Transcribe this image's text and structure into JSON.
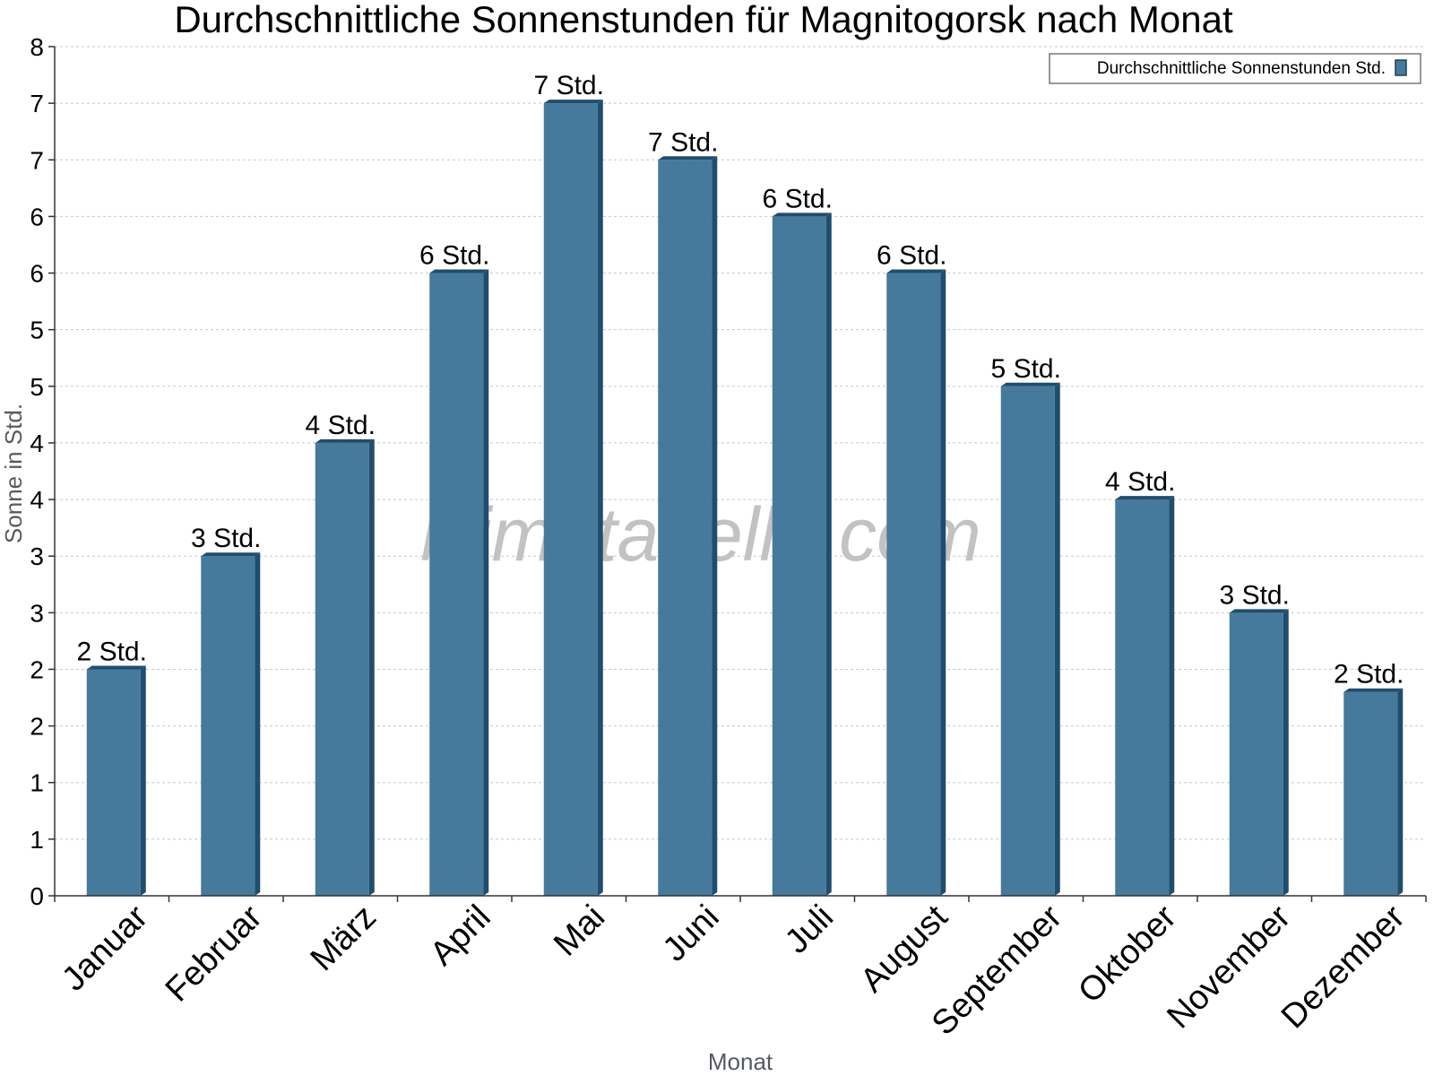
{
  "chart_data": {
    "type": "bar",
    "title": "Durchschnittliche Sonnenstunden für Magnitogorsk nach Monat",
    "xlabel": "Monat",
    "ylabel": "Sonne in Std.",
    "ylim": [
      0,
      7.5
    ],
    "y_ticks": [
      {
        "value": 0,
        "label": "0"
      },
      {
        "value": 0.5,
        "label": "1"
      },
      {
        "value": 1,
        "label": "1"
      },
      {
        "value": 1.5,
        "label": "2"
      },
      {
        "value": 2,
        "label": "2"
      },
      {
        "value": 2.5,
        "label": "3"
      },
      {
        "value": 3,
        "label": "3"
      },
      {
        "value": 3.5,
        "label": "4"
      },
      {
        "value": 4,
        "label": "4"
      },
      {
        "value": 4.5,
        "label": "5"
      },
      {
        "value": 5,
        "label": "5"
      },
      {
        "value": 5.5,
        "label": "6"
      },
      {
        "value": 6,
        "label": "6"
      },
      {
        "value": 6.5,
        "label": "7"
      },
      {
        "value": 7,
        "label": "7"
      },
      {
        "value": 7.5,
        "label": "8"
      }
    ],
    "grid": true,
    "legend_position": "top-right",
    "categories": [
      "Januar",
      "Februar",
      "März",
      "April",
      "Mai",
      "Juni",
      "Juli",
      "August",
      "September",
      "Oktober",
      "November",
      "Dezember"
    ],
    "series": [
      {
        "name": "Durchschnittliche Sonnenstunden Std.",
        "color": "#467a9c",
        "values": [
          2.0,
          3.0,
          4.0,
          5.5,
          7.0,
          6.5,
          6.0,
          5.5,
          4.5,
          3.5,
          2.5,
          1.8
        ],
        "labels": [
          "2 Std.",
          "3 Std.",
          "4 Std.",
          "6 Std.",
          "7 Std.",
          "7 Std.",
          "6 Std.",
          "6 Std.",
          "5 Std.",
          "4 Std.",
          "3 Std.",
          "2 Std."
        ]
      }
    ]
  },
  "watermark": "klimatabelle.com"
}
